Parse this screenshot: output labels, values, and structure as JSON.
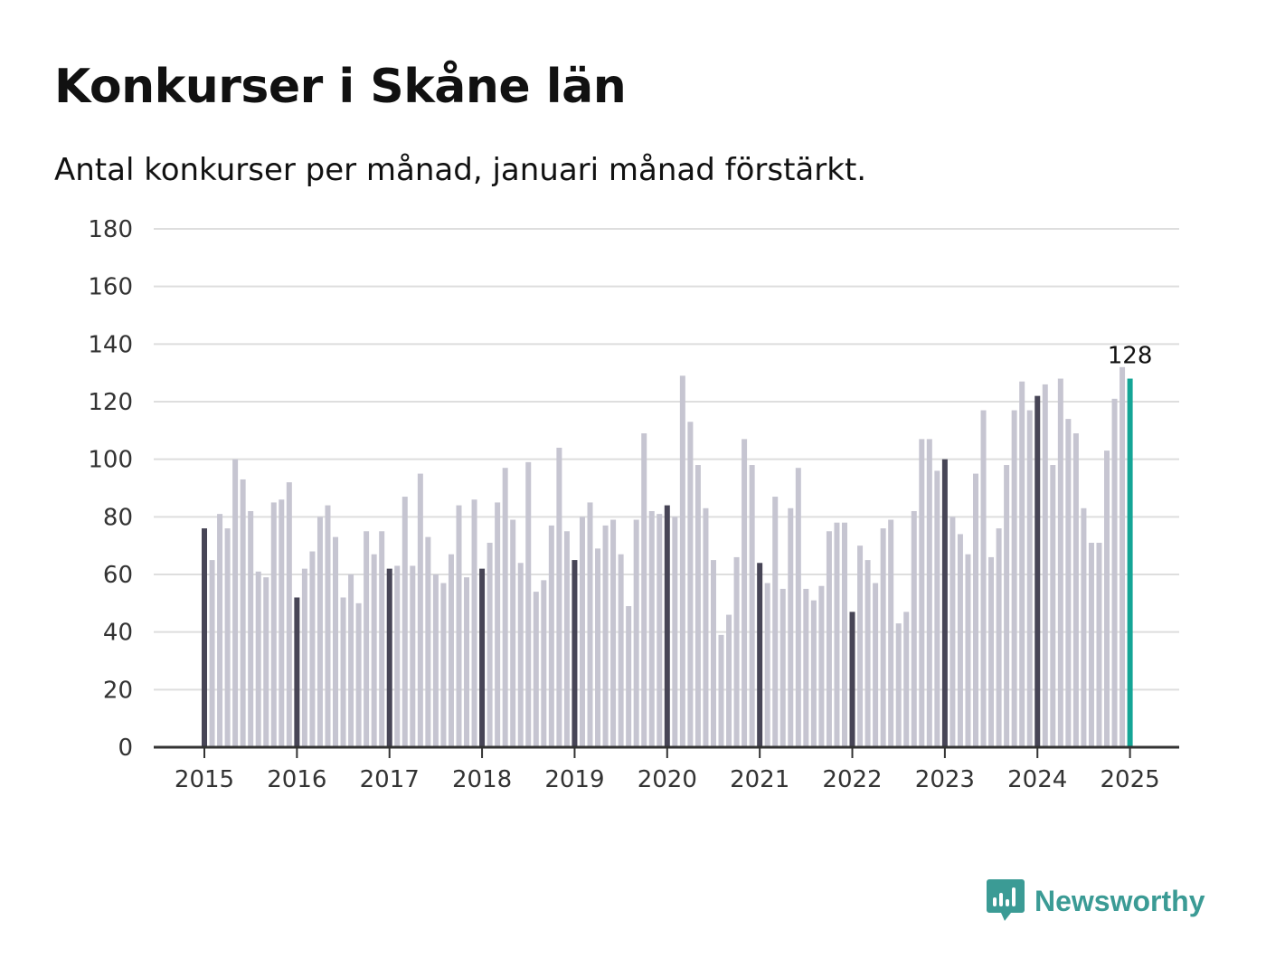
{
  "title": "Konkurser i Skåne län",
  "subtitle": "Antal konkurser per månad, januari månad förstärkt.",
  "brand": {
    "name": "Newsworthy",
    "color": "#3b9b95",
    "icon": "newsworthy-logo-icon"
  },
  "colors": {
    "regular": "#c6c5d1",
    "january": "#474556",
    "latest": "#14a596",
    "grid": "#dedede",
    "axis": "#333333"
  },
  "chart_data": {
    "type": "bar",
    "title": "Konkurser i Skåne län",
    "subtitle": "Antal konkurser per månad, januari månad förstärkt.",
    "xlabel": "",
    "ylabel": "",
    "ylim": [
      0,
      180
    ],
    "yticks": [
      0,
      20,
      40,
      60,
      80,
      100,
      120,
      140,
      160,
      180
    ],
    "xticks": [
      "2015",
      "2016",
      "2017",
      "2018",
      "2019",
      "2020",
      "2021",
      "2022",
      "2023",
      "2024",
      "2025"
    ],
    "grid": true,
    "legend": "none",
    "start": "2015-01",
    "highlight": "january",
    "latest_label": "128",
    "values": [
      76,
      65,
      81,
      76,
      100,
      93,
      82,
      61,
      59,
      85,
      86,
      92,
      52,
      62,
      68,
      80,
      84,
      73,
      52,
      60,
      50,
      75,
      67,
      75,
      62,
      63,
      87,
      63,
      95,
      73,
      60,
      57,
      67,
      84,
      59,
      86,
      62,
      71,
      85,
      97,
      79,
      64,
      99,
      54,
      58,
      77,
      104,
      75,
      65,
      80,
      85,
      69,
      77,
      79,
      67,
      49,
      79,
      109,
      82,
      81,
      84,
      80,
      129,
      113,
      98,
      83,
      65,
      39,
      46,
      66,
      107,
      98,
      64,
      57,
      87,
      55,
      83,
      97,
      55,
      51,
      56,
      75,
      78,
      78,
      47,
      70,
      65,
      57,
      76,
      79,
      43,
      47,
      82,
      107,
      107,
      96,
      100,
      80,
      74,
      67,
      95,
      117,
      66,
      76,
      98,
      117,
      127,
      117,
      122,
      126,
      98,
      128,
      114,
      109,
      83,
      71,
      71,
      103,
      121,
      132,
      128
    ]
  }
}
